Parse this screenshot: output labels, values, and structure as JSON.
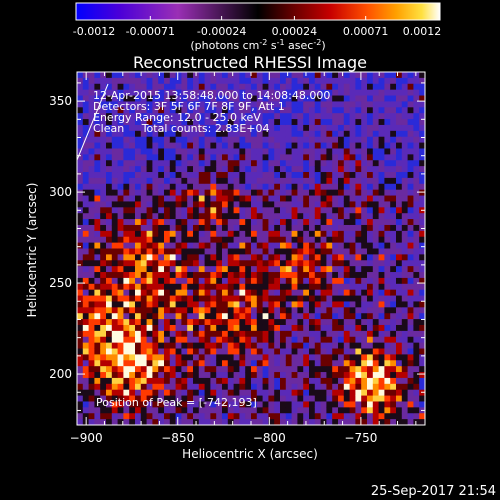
{
  "colorbar": {
    "tick_labels": [
      "-0.0012",
      "-0.00071",
      "-0.00024",
      "0.00024",
      "0.00071",
      "0.0012"
    ],
    "tick_values": [
      -0.0012,
      -0.00071,
      -0.00024,
      0.00024,
      0.00071,
      0.0012
    ],
    "range": [
      -0.0012,
      0.0012
    ],
    "units_prefix": "(photons cm",
    "units_exp1": "-2",
    "units_mid1": " s",
    "units_exp2": "-1",
    "units_mid2": " asec",
    "units_exp3": "-2",
    "units_suffix": ")",
    "gradient_colors": [
      "#0000ff",
      "#4b00d8",
      "#9a2fb5",
      "#000000",
      "#6a0000",
      "#c80000",
      "#ff5000",
      "#ffa000",
      "#ffe040",
      "#ffffff"
    ]
  },
  "chart_data": {
    "type": "heatmap",
    "title": "Reconstructed RHESSI Image",
    "xlabel": "Heliocentric X (arcsec)",
    "ylabel": "Heliocentric Y (arcsec)",
    "xlim": [
      -905,
      -715
    ],
    "ylim": [
      172,
      366
    ],
    "x_ticks": [
      -900,
      -850,
      -800,
      -750
    ],
    "x_tick_labels": [
      "−900",
      "−850",
      "−800",
      "−750"
    ],
    "y_ticks": [
      200,
      250,
      300,
      350
    ],
    "y_tick_labels": [
      "200",
      "250",
      "300",
      "350"
    ],
    "annotations": [
      "12-Apr-2015 13:58:48.000 to 14:08:48.000",
      "Detectors: 3F 5F 6F 7F 8F 9F, Att 1",
      "Energy Range: 12.0 - 25.0 keV",
      "Clean     Total counts: 2.83E+04"
    ],
    "peak_label": "Position of Peak = [-742,193]",
    "peak": [
      -742,
      193
    ],
    "timestamp": "25-Sep-2017 21:54"
  }
}
